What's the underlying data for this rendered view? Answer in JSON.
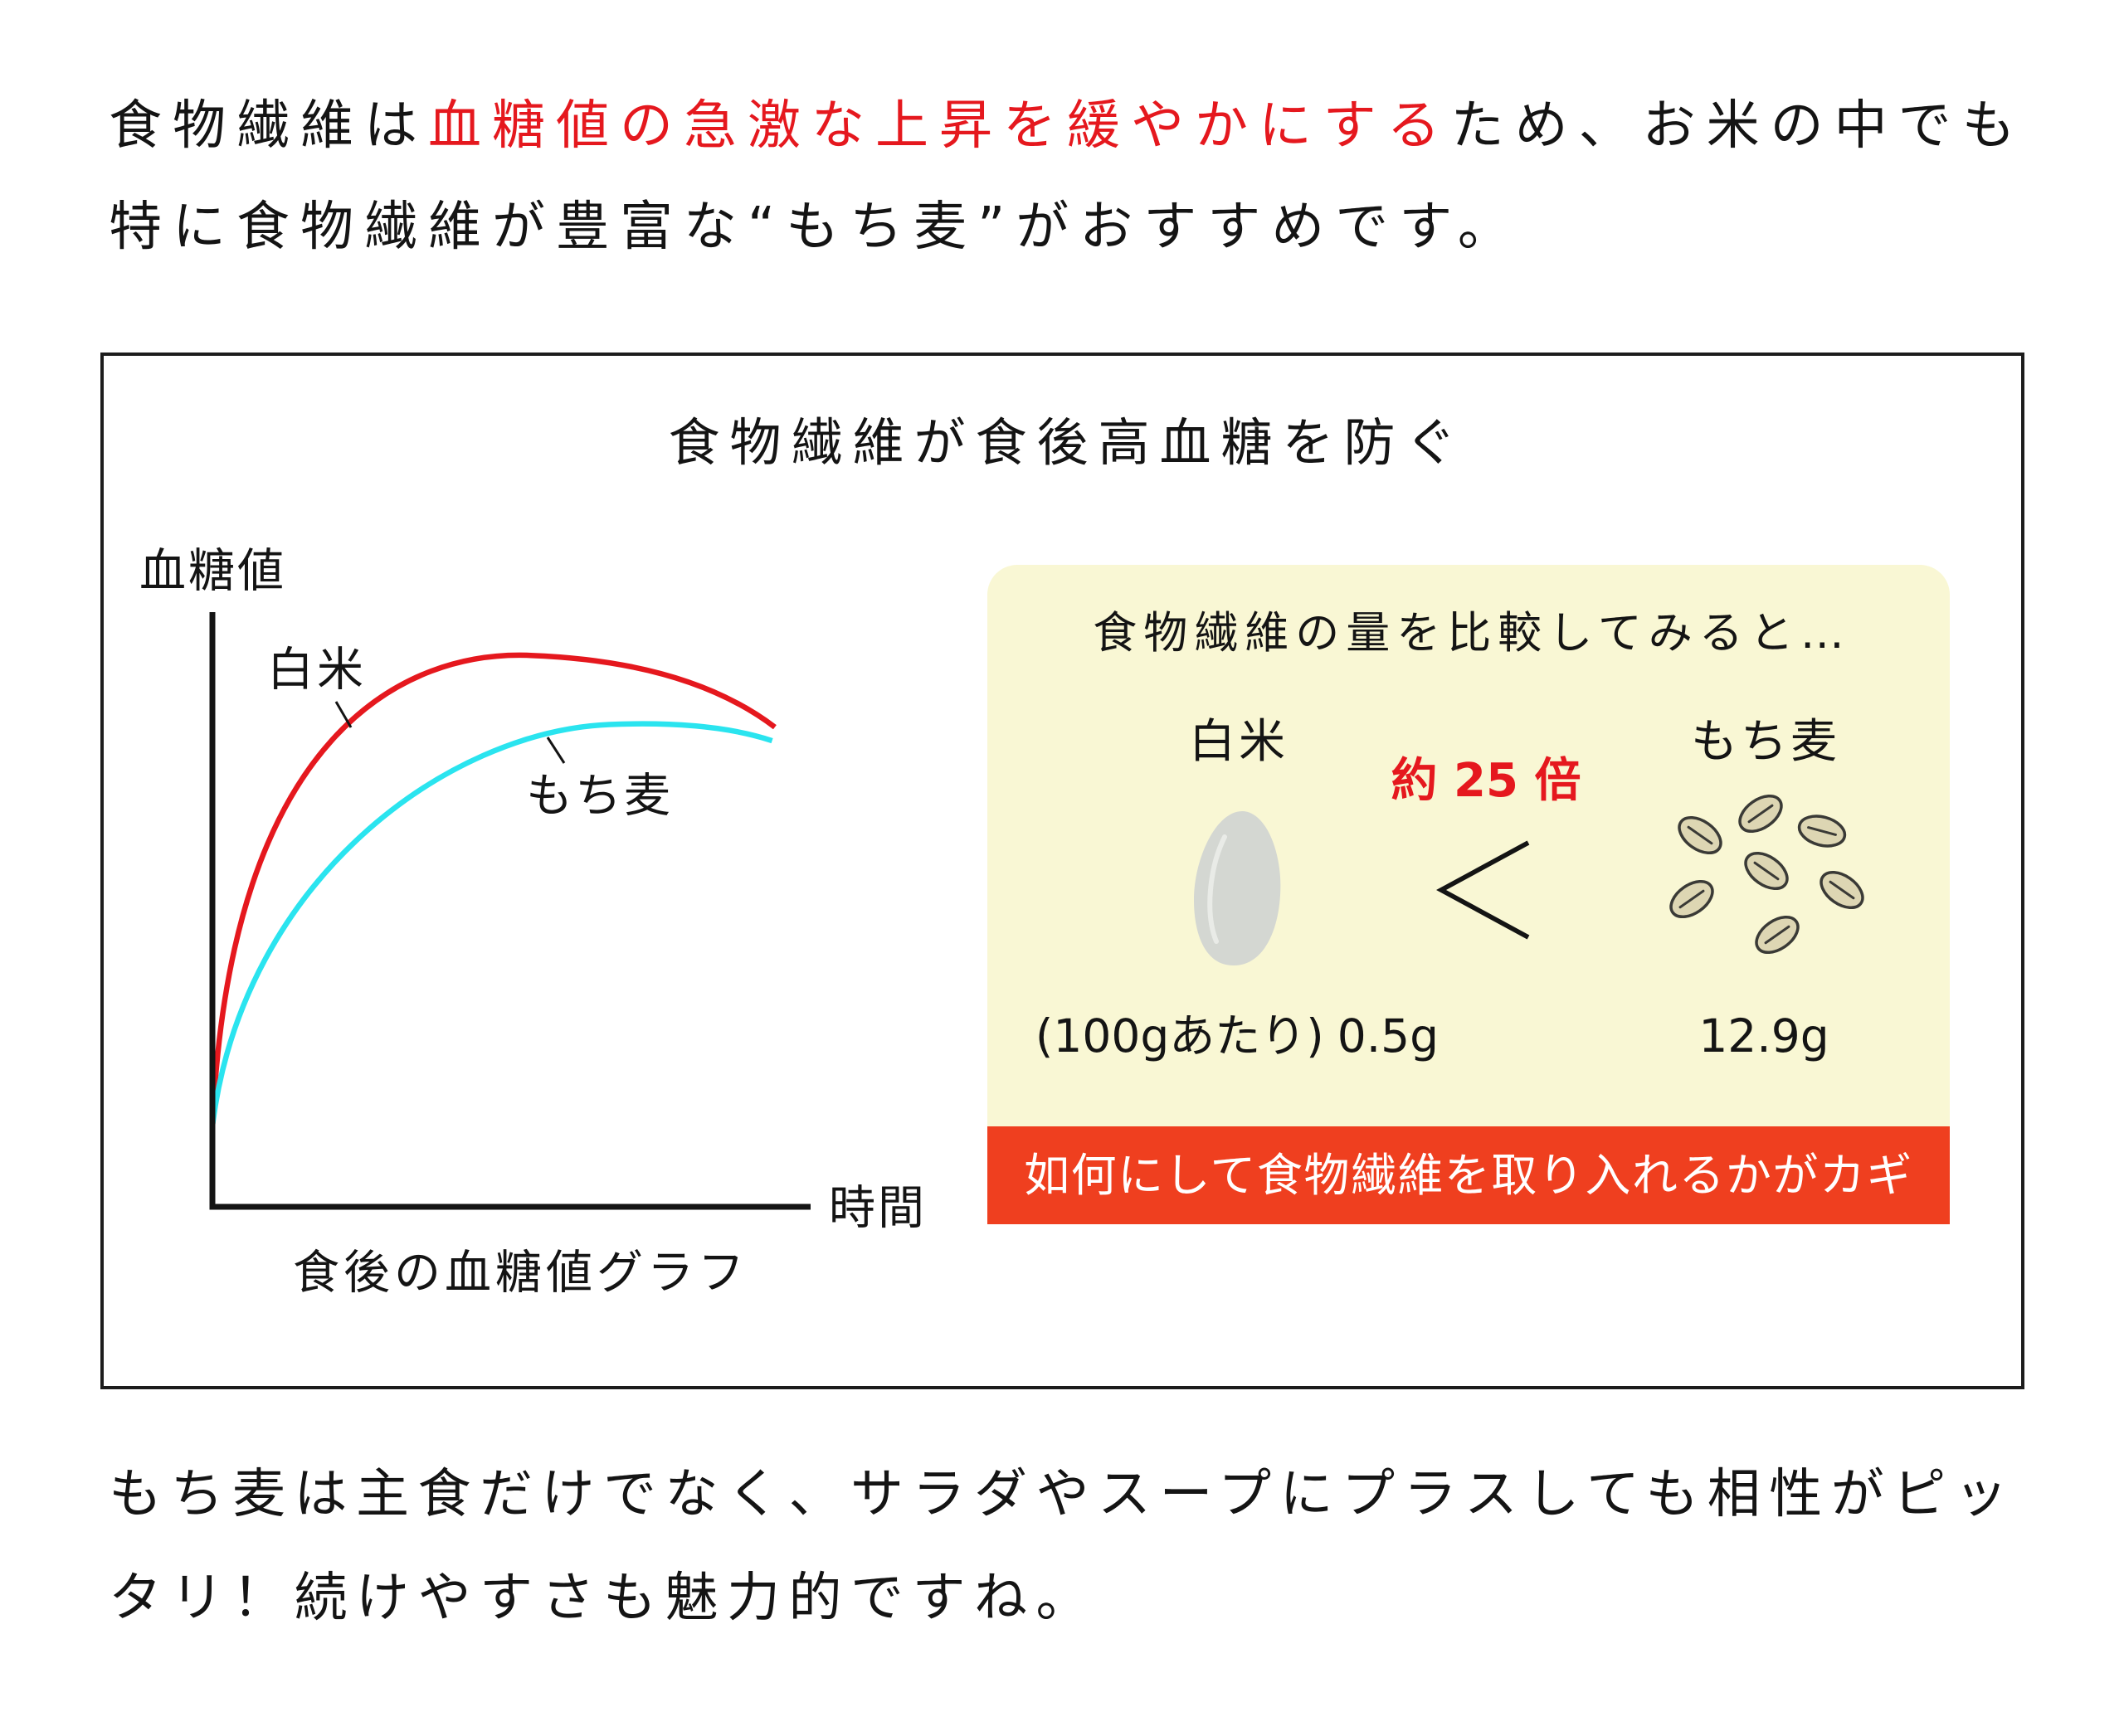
{
  "intro": {
    "line1_before": "食物繊維は",
    "line1_highlight": "血糖値の急激な上昇を緩やかにする",
    "line1_after": "ため、お米の中でも",
    "line2": "特に食物繊維が豊富な“もち麦”がおすすめです。"
  },
  "figure": {
    "title": "食物繊維が食後高血糖を防ぐ",
    "graph": {
      "ylabel": "血糖値",
      "xlabel": "時間",
      "caption": "食後の血糖値グラフ",
      "series": [
        {
          "name": "白米",
          "color": "#e5181e"
        },
        {
          "name": "もち麦",
          "color": "#2ae4ef"
        }
      ]
    },
    "comparison": {
      "heading": "食物繊維の量を比較してみると…",
      "left": {
        "name": "白米",
        "basis": "(100gあたり)",
        "value": "0.5g",
        "icon": "rice-grain-icon"
      },
      "comparator_icon": "less-than-icon",
      "ratio": "約 25 倍",
      "right": {
        "name": "もち麦",
        "value": "12.9g",
        "icon": "barley-grains-icon"
      },
      "banner": "如何にして食物繊維を取り入れるかがカギ"
    }
  },
  "outro": {
    "line1": "もち麦は主食だけでなく、サラダやスープにプラスしても相性がピッ",
    "line2": "タリ！続けやすさも魅力的ですね。"
  },
  "colors": {
    "text": "#141414",
    "highlight_red": "#e5181e",
    "panel_yellow": "#f9f7d4",
    "banner_red": "#ef3f1f",
    "banner_text": "#ffffff",
    "frame": "#1c1c1c"
  }
}
